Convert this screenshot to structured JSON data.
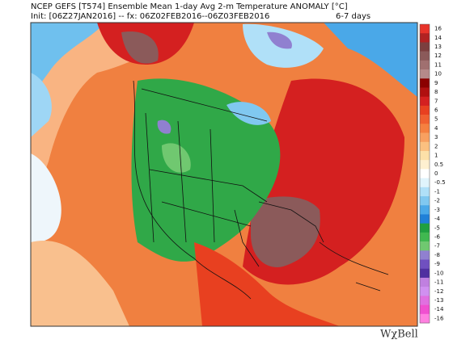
{
  "header": {
    "title": "NCEP GEFS [T574] Ensemble Mean 1-day Avg 2-m Temperature ANOMALY [°C]",
    "init": "Init: [06Z27JAN2016] -- fx: 06Z02FEB2016--06Z03FEB2016",
    "range": "6-7 days"
  },
  "colorbar": {
    "ticks": [
      16,
      14,
      13,
      12,
      11,
      10,
      9,
      8,
      7,
      6,
      5,
      4,
      3,
      2,
      1,
      0.5,
      0,
      -0.5,
      -1,
      -2,
      -3,
      -4,
      -5,
      -6,
      -7,
      -8,
      -9,
      -10,
      -11,
      -12,
      -13,
      -14,
      -16
    ],
    "colors": [
      "#e8332a",
      "#b22222",
      "#7b3f3f",
      "#8b5a5a",
      "#a07070",
      "#b58a8a",
      "#8b0000",
      "#b01010",
      "#d42020",
      "#e84020",
      "#f06030",
      "#f58040",
      "#f8a060",
      "#fbc080",
      "#fde0a8",
      "#fef0d0",
      "#ffffff",
      "#e0f4fc",
      "#b0e0f8",
      "#80c8f0",
      "#4aa8e8",
      "#2080d8",
      "#20a040",
      "#40b850",
      "#70c870",
      "#9080d0",
      "#7050c0",
      "#5030a0",
      "#c080e0",
      "#d090f0",
      "#e070e0",
      "#f050d0",
      "#ff80e0"
    ]
  },
  "logo": "WχBell"
}
